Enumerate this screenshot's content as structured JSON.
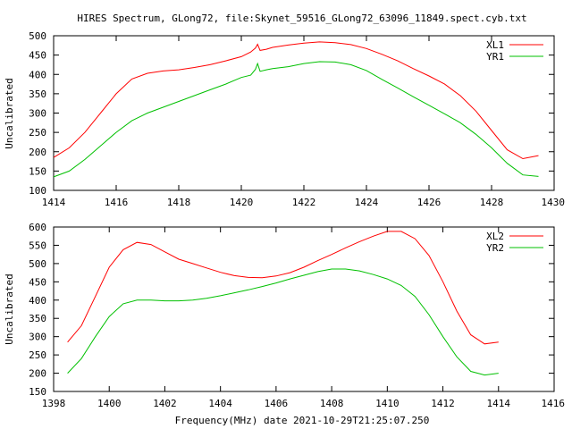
{
  "chart_data": [
    {
      "type": "line",
      "title": "HIRES Spectrum, GLong72, file:Skynet_59516_GLong72_63096_11849.spect.cyb.txt",
      "xlabel": "",
      "ylabel": "Uncalibrated",
      "xlim": [
        1414,
        1430
      ],
      "ylim": [
        100,
        500
      ],
      "x_ticks": [
        "1414",
        "1416",
        "1418",
        "1420",
        "1422",
        "1424",
        "1426",
        "1428",
        "1430"
      ],
      "y_ticks": [
        "100",
        "150",
        "200",
        "250",
        "300",
        "350",
        "400",
        "450",
        "500"
      ],
      "grid": false,
      "legend_position": "top-right",
      "series": [
        {
          "name": "XL1",
          "color": "#ff0000",
          "x": [
            1414.0,
            1414.5,
            1415.0,
            1415.5,
            1416.0,
            1416.5,
            1417.0,
            1417.5,
            1418.0,
            1418.5,
            1419.0,
            1419.5,
            1420.0,
            1420.3,
            1420.45,
            1420.52,
            1420.6,
            1420.8,
            1421.0,
            1421.5,
            1422.0,
            1422.5,
            1423.0,
            1423.5,
            1424.0,
            1424.5,
            1425.0,
            1425.5,
            1426.0,
            1426.5,
            1427.0,
            1427.5,
            1428.0,
            1428.5,
            1429.0,
            1429.5
          ],
          "y": [
            185,
            210,
            250,
            300,
            350,
            388,
            403,
            409,
            412,
            418,
            425,
            435,
            446,
            458,
            468,
            478,
            462,
            465,
            470,
            476,
            481,
            484,
            482,
            477,
            467,
            452,
            435,
            415,
            396,
            375,
            345,
            305,
            255,
            205,
            182,
            190
          ]
        },
        {
          "name": "YR1",
          "color": "#00c000",
          "x": [
            1414.0,
            1414.5,
            1415.0,
            1415.5,
            1416.0,
            1416.5,
            1417.0,
            1417.5,
            1418.0,
            1418.5,
            1419.0,
            1419.5,
            1420.0,
            1420.3,
            1420.45,
            1420.52,
            1420.6,
            1420.8,
            1421.0,
            1421.5,
            1422.0,
            1422.5,
            1423.0,
            1423.5,
            1424.0,
            1424.5,
            1425.0,
            1425.5,
            1426.0,
            1426.5,
            1427.0,
            1427.5,
            1428.0,
            1428.5,
            1429.0,
            1429.5
          ],
          "y": [
            135,
            150,
            180,
            215,
            250,
            280,
            300,
            315,
            330,
            345,
            360,
            375,
            392,
            398,
            413,
            428,
            408,
            412,
            415,
            420,
            428,
            433,
            432,
            425,
            410,
            387,
            365,
            342,
            320,
            298,
            275,
            245,
            210,
            170,
            140,
            136
          ]
        }
      ]
    },
    {
      "type": "line",
      "title": "",
      "xlabel": "Frequency(MHz) date 2021-10-29T21:25:07.250",
      "ylabel": "Uncalibrated",
      "xlim": [
        1398,
        1416
      ],
      "ylim": [
        150,
        600
      ],
      "x_ticks": [
        "1398",
        "1400",
        "1402",
        "1404",
        "1406",
        "1408",
        "1410",
        "1412",
        "1414",
        "1416"
      ],
      "y_ticks": [
        "150",
        "200",
        "250",
        "300",
        "350",
        "400",
        "450",
        "500",
        "550",
        "600"
      ],
      "grid": false,
      "legend_position": "top-right",
      "series": [
        {
          "name": "XL2",
          "color": "#ff0000",
          "x": [
            1398.5,
            1399.0,
            1399.5,
            1400.0,
            1400.5,
            1401.0,
            1401.5,
            1402.0,
            1402.5,
            1403.0,
            1403.5,
            1404.0,
            1404.5,
            1405.0,
            1405.5,
            1406.0,
            1406.5,
            1407.0,
            1407.5,
            1408.0,
            1408.5,
            1409.0,
            1409.5,
            1410.0,
            1410.5,
            1411.0,
            1411.5,
            1412.0,
            1412.5,
            1413.0,
            1413.5,
            1414.0
          ],
          "y": [
            285,
            330,
            410,
            490,
            538,
            558,
            552,
            532,
            512,
            500,
            488,
            476,
            467,
            462,
            461,
            466,
            475,
            490,
            508,
            525,
            543,
            560,
            575,
            588,
            588,
            568,
            522,
            450,
            370,
            305,
            280,
            285
          ]
        },
        {
          "name": "YR2",
          "color": "#00c000",
          "x": [
            1398.5,
            1399.0,
            1399.5,
            1400.0,
            1400.5,
            1401.0,
            1401.5,
            1402.0,
            1402.5,
            1403.0,
            1403.5,
            1404.0,
            1404.5,
            1405.0,
            1405.5,
            1406.0,
            1406.5,
            1407.0,
            1407.5,
            1408.0,
            1408.5,
            1409.0,
            1409.5,
            1410.0,
            1410.5,
            1411.0,
            1411.5,
            1412.0,
            1412.5,
            1413.0,
            1413.5,
            1414.0
          ],
          "y": [
            200,
            240,
            300,
            355,
            390,
            400,
            400,
            398,
            398,
            400,
            405,
            412,
            420,
            428,
            437,
            447,
            458,
            468,
            478,
            485,
            485,
            480,
            470,
            458,
            440,
            410,
            360,
            300,
            245,
            205,
            195,
            200
          ]
        }
      ]
    }
  ]
}
